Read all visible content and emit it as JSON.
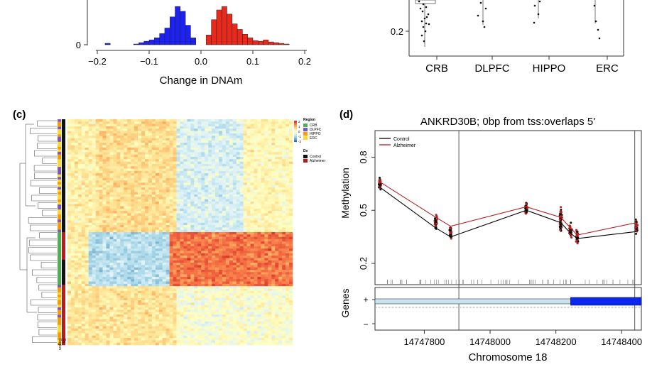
{
  "panel_a": {
    "xlabel": "Change in DNAm",
    "xticks": [
      "−0.2",
      "−0.1",
      "0.0",
      "0.1",
      "0.2"
    ],
    "yticks": [
      "0"
    ]
  },
  "panel_b": {
    "yticks": [
      "0.2"
    ],
    "categories": [
      "CRB",
      "DLPFC",
      "HIPPO",
      "ERC"
    ]
  },
  "panel_c": {
    "label": "(c)",
    "legend": {
      "region_title": "Region",
      "regions": [
        "CRB",
        "DLPFC",
        "HIPPO",
        "ERC"
      ],
      "region_colors": [
        "#4caf50",
        "#7e57c2",
        "#ff9800",
        "#fdd835"
      ],
      "dx_title": "Dx",
      "dx": [
        "Control",
        "Alzheimer"
      ],
      "dx_colors": [
        "#111111",
        "#b71c1c"
      ],
      "scale_ticks": [
        "2",
        "1",
        "0",
        "-1",
        "-2"
      ]
    },
    "row_labels": [
      "Dx",
      "Region"
    ]
  },
  "panel_d": {
    "label": "(d)",
    "title": "ANKRD30B; 0bp from tss:overlaps 5'",
    "ylabel": "Methylation",
    "yticks": [
      "0.8",
      "0.5",
      "0.2"
    ],
    "xticks": [
      "14747800",
      "14748000",
      "14748200",
      "14748400"
    ],
    "xlabel": "Chromosome 18",
    "genes_label": "Genes",
    "genes_ticks": [
      "+",
      "−"
    ],
    "legend": [
      "Control",
      "Alzheimer"
    ]
  },
  "chart_data": [
    {
      "type": "bar",
      "panel": "a",
      "xlabel": "Change in DNAm",
      "xlim": [
        -0.2,
        0.2
      ],
      "series": [
        {
          "name": "",
          "color": "#1e22f0",
          "x": [
            -0.18,
            -0.125,
            -0.115,
            -0.105,
            -0.095,
            -0.085,
            -0.075,
            -0.065,
            -0.055,
            -0.045,
            -0.035,
            -0.025,
            -0.015
          ],
          "values": [
            2,
            1,
            3,
            5,
            7,
            10,
            16,
            24,
            40,
            55,
            48,
            28,
            10
          ]
        },
        {
          "name": "",
          "color": "#e8291c",
          "x": [
            0.015,
            0.025,
            0.035,
            0.045,
            0.055,
            0.065,
            0.075,
            0.085,
            0.095,
            0.105,
            0.115,
            0.125,
            0.135,
            0.145,
            0.155,
            0.165
          ],
          "values": [
            14,
            36,
            50,
            55,
            44,
            30,
            22,
            15,
            10,
            6,
            5,
            7,
            4,
            3,
            2,
            1
          ]
        }
      ]
    },
    {
      "type": "scatter",
      "panel": "b",
      "categories": [
        "CRB",
        "DLPFC",
        "HIPPO",
        "ERC"
      ],
      "yticks": [
        0.2
      ]
    },
    {
      "type": "heatmap",
      "panel": "c",
      "legend_scale": [
        2,
        1,
        0,
        -1,
        -2
      ]
    },
    {
      "type": "line",
      "panel": "d",
      "title": "ANKRD30B; 0bp from tss:overlaps 5'",
      "xlabel": "Chromosome 18",
      "ylabel": "Methylation",
      "xlim": [
        14747650,
        14748460
      ],
      "ylim": [
        0.08,
        0.95
      ],
      "series": [
        {
          "name": "Control",
          "color": "#000000",
          "x": [
            14747665,
            14747835,
            14747880,
            14748110,
            14748215,
            14748245,
            14748265,
            14748445
          ],
          "values": [
            0.63,
            0.4,
            0.35,
            0.5,
            0.43,
            0.37,
            0.34,
            0.38
          ]
        },
        {
          "name": "Alzheimer",
          "color": "#b22222",
          "x": [
            14747665,
            14747835,
            14747880,
            14748110,
            14748215,
            14748245,
            14748265,
            14748445
          ],
          "values": [
            0.66,
            0.46,
            0.41,
            0.52,
            0.46,
            0.4,
            0.36,
            0.43
          ]
        }
      ],
      "vlines": [
        14747905,
        14748440
      ],
      "gene": {
        "strand": "+",
        "start": 14747650,
        "thick_start": 14748245,
        "end": 14748460
      }
    }
  ]
}
